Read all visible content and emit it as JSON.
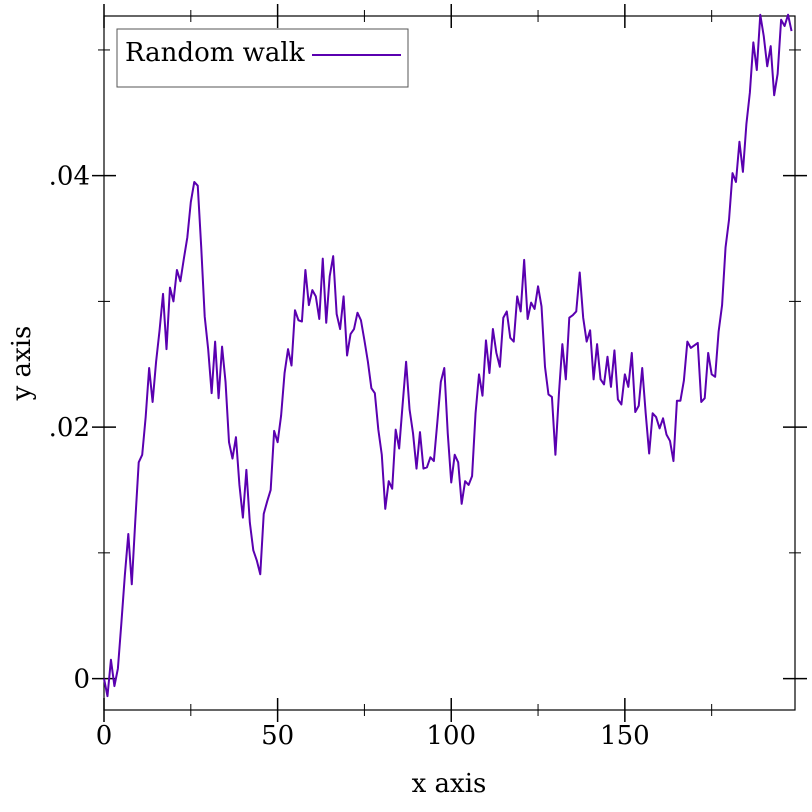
{
  "chart_data": {
    "type": "line",
    "xlabel": "x axis",
    "ylabel": "y axis",
    "xlim": [
      0,
      199
    ],
    "ylim": [
      -0.0025,
      0.0527
    ],
    "x_ticks": [
      {
        "value": 0,
        "label": "0"
      },
      {
        "value": 50,
        "label": "50"
      },
      {
        "value": 100,
        "label": "100"
      },
      {
        "value": 150,
        "label": "150"
      }
    ],
    "x_minor_ticks": [
      25,
      75,
      125,
      175
    ],
    "y_ticks": [
      {
        "value": 0,
        "label": "0"
      },
      {
        "value": 0.02,
        "label": ".02"
      },
      {
        "value": 0.04,
        "label": ".04"
      }
    ],
    "y_minor_ticks": [
      0.01,
      0.03,
      0.05
    ],
    "grid": false,
    "legend": {
      "position": "top-left"
    },
    "series": [
      {
        "name": "Random walk",
        "color": "#5a00b0",
        "values": [
          0,
          -0.0014,
          0.0015,
          -0.0006,
          0.0008,
          0.0044,
          0.0082,
          0.0115,
          0.0075,
          0.0125,
          0.0172,
          0.0178,
          0.0208,
          0.0247,
          0.022,
          0.0252,
          0.0277,
          0.0306,
          0.0262,
          0.0311,
          0.03,
          0.0325,
          0.0316,
          0.0334,
          0.0351,
          0.0379,
          0.0395,
          0.0392,
          0.0343,
          0.0288,
          0.0262,
          0.0227,
          0.0268,
          0.0223,
          0.0264,
          0.0236,
          0.0188,
          0.0175,
          0.0192,
          0.0154,
          0.0128,
          0.0166,
          0.0124,
          0.0102,
          0.0094,
          0.0083,
          0.0131,
          0.0141,
          0.015,
          0.0197,
          0.0188,
          0.0209,
          0.0243,
          0.0262,
          0.0249,
          0.0293,
          0.0285,
          0.0284,
          0.0325,
          0.0297,
          0.0309,
          0.0304,
          0.0286,
          0.0334,
          0.0283,
          0.032,
          0.0336,
          0.029,
          0.0278,
          0.0304,
          0.0257,
          0.0274,
          0.0278,
          0.0291,
          0.0285,
          0.0269,
          0.0252,
          0.0231,
          0.0227,
          0.0198,
          0.0178,
          0.0135,
          0.0157,
          0.0151,
          0.0198,
          0.0183,
          0.0218,
          0.0252,
          0.0214,
          0.0195,
          0.0167,
          0.0196,
          0.0167,
          0.0168,
          0.0176,
          0.0173,
          0.0204,
          0.0236,
          0.0247,
          0.0195,
          0.0156,
          0.0178,
          0.0172,
          0.0139,
          0.0157,
          0.0154,
          0.0161,
          0.0211,
          0.0242,
          0.0225,
          0.0269,
          0.0243,
          0.0278,
          0.0259,
          0.0248,
          0.0287,
          0.0292,
          0.0271,
          0.0268,
          0.0304,
          0.0292,
          0.0333,
          0.0286,
          0.0299,
          0.0294,
          0.0312,
          0.0296,
          0.0248,
          0.0226,
          0.0224,
          0.0178,
          0.0226,
          0.0266,
          0.0238,
          0.0287,
          0.0289,
          0.0292,
          0.0323,
          0.0287,
          0.0268,
          0.0277,
          0.0238,
          0.0266,
          0.0238,
          0.0234,
          0.0256,
          0.0232,
          0.0261,
          0.0222,
          0.0218,
          0.0242,
          0.0232,
          0.0259,
          0.0212,
          0.0217,
          0.0247,
          0.0211,
          0.0179,
          0.0211,
          0.0208,
          0.0199,
          0.0207,
          0.0194,
          0.0189,
          0.0173,
          0.0221,
          0.0221,
          0.0237,
          0.0268,
          0.0263,
          0.0265,
          0.0267,
          0.022,
          0.0223,
          0.0259,
          0.0242,
          0.024,
          0.0276,
          0.0297,
          0.0343,
          0.0365,
          0.0402,
          0.0395,
          0.0427,
          0.0403,
          0.0441,
          0.0466,
          0.0506,
          0.0484,
          0.0528,
          0.0511,
          0.0487,
          0.0503,
          0.0464,
          0.0481,
          0.0524,
          0.0519,
          0.0528,
          0.0515
        ]
      }
    ]
  }
}
